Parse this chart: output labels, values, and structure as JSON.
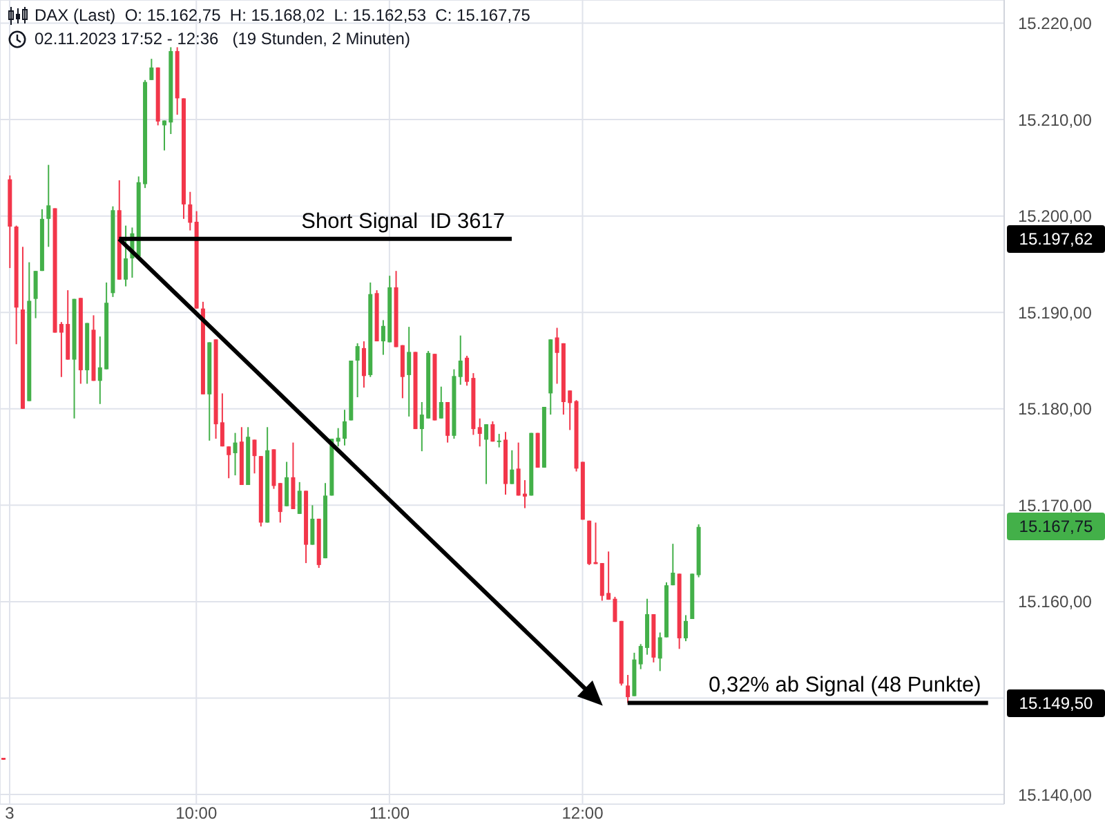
{
  "chart_data": {
    "type": "candlestick",
    "title": "DAX (Last)  O: 15.162,75  H: 15.168,02  L: 15.162,53  C: 15.167,75",
    "subtitle": "02.11.2023 17:52 - 12:36   (19 Stunden, 2 Minuten)",
    "categories": [
      null,
      "3",
      null,
      null,
      null,
      null,
      null,
      null,
      null,
      null,
      null,
      null,
      null,
      null,
      null,
      null,
      null,
      null,
      null,
      null,
      null,
      null,
      null,
      null,
      null,
      null,
      null,
      null,
      null,
      null,
      "10:00",
      null,
      null,
      null,
      null,
      null,
      null,
      null,
      null,
      null,
      null,
      null,
      null,
      null,
      null,
      null,
      null,
      null,
      null,
      null,
      null,
      null,
      null,
      null,
      null,
      null,
      null,
      null,
      null,
      null,
      "11:00",
      null,
      null,
      null,
      null,
      null,
      null,
      null,
      null,
      null,
      null,
      null,
      null,
      null,
      null,
      null,
      null,
      null,
      null,
      null,
      null,
      null,
      null,
      null,
      null,
      null,
      null,
      null,
      null,
      null,
      "12:00",
      null,
      null,
      null,
      null,
      null,
      null,
      null,
      null,
      null,
      null,
      null,
      null,
      null,
      null,
      null,
      null,
      null,
      null,
      null,
      null,
      null,
      null,
      null,
      null,
      null,
      null,
      null,
      null,
      null,
      null,
      null,
      null,
      null,
      null,
      null,
      null,
      null,
      null,
      null,
      null,
      null,
      null,
      null,
      null,
      null,
      null,
      null,
      null,
      null,
      null,
      null,
      null,
      null,
      null,
      null,
      null,
      null,
      null,
      null,
      null,
      null,
      null,
      null,
      null,
      null
    ],
    "ohlc": [
      [
        15143.8,
        15143.8,
        15143.6,
        15143.6
      ],
      [
        15203.8,
        15204.2,
        15194.6,
        15198.9
      ],
      [
        15198.9,
        15199.0,
        15186.7,
        15190.5
      ],
      [
        15190.3,
        15196.8,
        15180.0,
        15180.0
      ],
      [
        15180.8,
        15195.2,
        15180.8,
        15191.2
      ],
      [
        15191.4,
        15194.3,
        15189.4,
        15194.3
      ],
      [
        15194.3,
        15200.7,
        15194.3,
        15199.7
      ],
      [
        15199.7,
        15205.3,
        15196.8,
        15201.1
      ],
      [
        15200.8,
        15200.8,
        15187.9,
        15187.9
      ],
      [
        15188.8,
        15189.0,
        15183.3,
        15187.9
      ],
      [
        15188.8,
        15192.3,
        15185.1,
        15185.1
      ],
      [
        15185.1,
        15191.4,
        15179.0,
        15191.4
      ],
      [
        15191.5,
        15191.5,
        15182.6,
        15184.0
      ],
      [
        15184.0,
        15188.9,
        15182.6,
        15188.9
      ],
      [
        15188.2,
        15189.7,
        15182.9,
        15182.9
      ],
      [
        15182.9,
        15187.5,
        15180.5,
        15184.3
      ],
      [
        15184.1,
        15193.1,
        15184.1,
        15191.0
      ],
      [
        15192.0,
        15201.0,
        15191.6,
        15200.6
      ],
      [
        15200.6,
        15203.7,
        15193.4,
        15193.4
      ],
      [
        15193.4,
        15199.0,
        15192.7,
        15195.6
      ],
      [
        15195.6,
        15198.8,
        15193.6,
        15198.2
      ],
      [
        15195.8,
        15204.1,
        15195.8,
        15203.5
      ],
      [
        15203.3,
        15214.1,
        15202.9,
        15213.9
      ],
      [
        15214.1,
        15216.3,
        15214.1,
        15215.4
      ],
      [
        15215.4,
        15215.4,
        15209.4,
        15209.8
      ],
      [
        15209.4,
        15209.9,
        15206.8,
        15209.9
      ],
      [
        15209.7,
        15217.5,
        15208.5,
        15217.1
      ],
      [
        15217.1,
        15217.5,
        15210.5,
        15212.2
      ],
      [
        15212.2,
        15212.2,
        15199.7,
        15201.2
      ],
      [
        15201.2,
        15202.5,
        15198.5,
        15199.3
      ],
      [
        15199.4,
        15200.5,
        15190.4,
        15190.4
      ],
      [
        15190.4,
        15191.1,
        15181.5,
        15181.5
      ],
      [
        15181.5,
        15186.9,
        15176.7,
        15186.9
      ],
      [
        15187.2,
        15187.2,
        15176.9,
        15178.4
      ],
      [
        15178.6,
        15181.6,
        15176.1,
        15176.1
      ],
      [
        15176.1,
        15176.1,
        15172.8,
        15175.2
      ],
      [
        15175.4,
        15177.5,
        15173.1,
        15176.5
      ],
      [
        15176.6,
        15178.1,
        15172.1,
        15172.1
      ],
      [
        15172.1,
        15178.1,
        15172.1,
        15177.1
      ],
      [
        15176.8,
        15176.8,
        15173.3,
        15175.1
      ],
      [
        15175.1,
        15175.1,
        15167.8,
        15168.2
      ],
      [
        15168.2,
        15178.1,
        15168.2,
        15175.7
      ],
      [
        15175.8,
        15175.8,
        15171.7,
        15172.0
      ],
      [
        15172.3,
        15172.3,
        15168.2,
        15169.3
      ],
      [
        15169.9,
        15174.5,
        15169.9,
        15172.9
      ],
      [
        15172.9,
        15176.5,
        15169.6,
        15169.6
      ],
      [
        15169.1,
        15172.4,
        15169.1,
        15171.5
      ],
      [
        15171.5,
        15171.5,
        15164.0,
        15165.9
      ],
      [
        15165.9,
        15170.0,
        15165.9,
        15168.6
      ],
      [
        15168.6,
        15168.6,
        15163.5,
        15163.8
      ],
      [
        15164.5,
        15172.3,
        15164.5,
        15171.0
      ],
      [
        15171.0,
        15176.9,
        15171.0,
        15176.9
      ],
      [
        15176.6,
        15178.0,
        15176.1,
        15177.0
      ],
      [
        15176.9,
        15179.9,
        15176.2,
        15178.7
      ],
      [
        15178.8,
        15185.0,
        15178.8,
        15185.0
      ],
      [
        15185.0,
        15186.8,
        15181.2,
        15186.5
      ],
      [
        15186.3,
        15187.0,
        15182.2,
        15183.4
      ],
      [
        15183.5,
        15193.1,
        15183.3,
        15191.9
      ],
      [
        15192.0,
        15192.3,
        15187.0,
        15187.0
      ],
      [
        15187.0,
        15189.2,
        15185.6,
        15188.6
      ],
      [
        15186.9,
        15193.8,
        15186.9,
        15192.6
      ],
      [
        15192.6,
        15194.3,
        15186.4,
        15186.4
      ],
      [
        15186.6,
        15186.6,
        15181.1,
        15183.3
      ],
      [
        15183.5,
        15188.5,
        15179.2,
        15185.9
      ],
      [
        15185.9,
        15185.9,
        15177.9,
        15177.9
      ],
      [
        15177.9,
        15180.7,
        15175.6,
        15179.4
      ],
      [
        15179.0,
        15186.0,
        15179.0,
        15185.8
      ],
      [
        15185.7,
        15185.7,
        15178.8,
        15178.8
      ],
      [
        15179.0,
        15182.3,
        15179.0,
        15180.7
      ],
      [
        15180.7,
        15180.7,
        15176.5,
        15177.2
      ],
      [
        15177.2,
        15184.1,
        15176.9,
        15183.4
      ],
      [
        15183.3,
        15187.6,
        15182.5,
        15185.0
      ],
      [
        15185.3,
        15185.5,
        15182.4,
        15182.8
      ],
      [
        15183.2,
        15183.7,
        15177.3,
        15177.9
      ],
      [
        15178.1,
        15179.0,
        15176.1,
        15177.4
      ],
      [
        15176.8,
        15178.4,
        15172.2,
        15178.4
      ],
      [
        15178.4,
        15178.7,
        15176.6,
        15176.6
      ],
      [
        15176.6,
        15177.4,
        15176.0,
        15176.7
      ],
      [
        15176.8,
        15177.6,
        15171.1,
        15172.2
      ],
      [
        15172.2,
        15175.7,
        15172.2,
        15173.7
      ],
      [
        15173.8,
        15176.5,
        15171.0,
        15171.0
      ],
      [
        15171.2,
        15172.6,
        15169.7,
        15170.9
      ],
      [
        15171.0,
        15177.5,
        15171.0,
        15177.5
      ],
      [
        15177.5,
        15177.5,
        15173.9,
        15173.9
      ],
      [
        15173.9,
        15180.2,
        15173.9,
        15180.2
      ],
      [
        15181.6,
        15187.2,
        15179.4,
        15187.2
      ],
      [
        15187.4,
        15188.4,
        15182.6,
        15185.8
      ],
      [
        15186.8,
        15186.8,
        15179.4,
        15180.7
      ],
      [
        15181.9,
        15181.9,
        15177.8,
        15180.6
      ],
      [
        15180.8,
        15180.9,
        15173.5,
        15173.8
      ],
      [
        15174.5,
        15174.5,
        15168.5,
        15168.5
      ],
      [
        15168.4,
        15168.4,
        15163.8,
        15163.9
      ],
      [
        15164.1,
        15168.2,
        15163.9,
        15163.9
      ],
      [
        15164.0,
        15164.0,
        15160.1,
        15160.6
      ],
      [
        15160.9,
        15165.2,
        15160.2,
        15160.2
      ],
      [
        15160.3,
        15160.5,
        15157.9,
        15157.9
      ],
      [
        15158.0,
        15158.0,
        15151.3,
        15151.5
      ],
      [
        15151.3,
        15152.4,
        15149.5,
        15150.1
      ],
      [
        15150.2,
        15154.7,
        15150.2,
        15154.0
      ],
      [
        15153.5,
        15155.6,
        15153.0,
        15155.4
      ],
      [
        15155.2,
        15160.3,
        15154.5,
        15158.7
      ],
      [
        15158.7,
        15158.7,
        15153.7,
        15154.2
      ],
      [
        15154.1,
        15156.8,
        15152.8,
        15156.3
      ],
      [
        15156.3,
        15162.0,
        15156.3,
        15161.7
      ],
      [
        15161.7,
        15166.0,
        15161.7,
        15163.0
      ],
      [
        15162.9,
        15162.9,
        15155.1,
        15156.2
      ],
      [
        15156.2,
        15158.6,
        15155.9,
        15158.0
      ],
      [
        15158.2,
        15162.9,
        15158.2,
        15162.9
      ],
      [
        15162.75,
        15168.02,
        15162.53,
        15167.75
      ],
      null,
      null,
      null,
      null,
      null,
      null,
      null,
      null,
      null,
      null,
      null,
      null,
      null,
      null,
      null,
      null,
      null,
      null,
      null,
      null,
      null,
      null,
      null,
      null,
      null,
      null,
      null,
      null,
      null,
      null,
      null,
      null,
      null,
      null,
      null,
      null,
      null,
      null,
      null,
      null,
      null,
      null,
      null,
      null,
      null,
      null,
      null
    ],
    "colors": [
      "#f2364a",
      "#f2364a",
      "#f2364a",
      "#f2364a",
      "#43b049",
      "#43b049",
      "#43b049",
      "#43b049",
      "#f2364a",
      "#f2364a",
      "#f2364a",
      "#43b049",
      "#f2364a",
      "#43b049",
      "#f2364a",
      "#43b049",
      "#43b049",
      "#43b049",
      "#f2364a",
      "#43b049",
      "#43b049",
      "#43b049",
      "#43b049",
      "#43b049",
      "#f2364a",
      "#43b049",
      "#43b049",
      "#f2364a",
      "#f2364a",
      "#f2364a",
      "#f2364a",
      "#f2364a",
      "#43b049",
      "#f2364a",
      "#f2364a",
      "#f2364a",
      "#43b049",
      "#f2364a",
      "#43b049",
      "#f2364a",
      "#f2364a",
      "#43b049",
      "#f2364a",
      "#f2364a",
      "#43b049",
      "#f2364a",
      "#43b049",
      "#f2364a",
      "#43b049",
      "#f2364a",
      "#43b049",
      "#43b049",
      "#43b049",
      "#43b049",
      "#43b049",
      "#43b049",
      "#f2364a",
      "#43b049",
      "#f2364a",
      "#43b049",
      "#43b049",
      "#f2364a",
      "#f2364a",
      "#43b049",
      "#f2364a",
      "#43b049",
      "#43b049",
      "#f2364a",
      "#43b049",
      "#f2364a",
      "#43b049",
      "#43b049",
      "#f2364a",
      "#f2364a",
      "#f2364a",
      "#43b049",
      "#f2364a",
      "#43b049",
      "#f2364a",
      "#43b049",
      "#f2364a",
      "#f2364a",
      "#43b049",
      "#f2364a",
      "#43b049",
      "#43b049",
      "#f2364a",
      "#f2364a",
      "#f2364a",
      "#f2364a",
      "#f2364a",
      "#f2364a",
      "#f2364a",
      "#f2364a",
      "#f2364a",
      "#f2364a",
      "#f2364a",
      "#f2364a",
      "#43b049",
      "#43b049",
      "#43b049",
      "#f2364a",
      "#43b049",
      "#43b049",
      "#43b049",
      "#f2364a",
      "#43b049",
      "#43b049",
      "#43b049",
      null,
      null,
      null,
      null,
      null,
      null,
      null,
      null,
      null,
      null,
      null,
      null,
      null,
      null,
      null,
      null,
      null,
      null,
      null,
      null,
      null,
      null,
      null,
      null,
      null,
      null,
      null,
      null,
      null,
      null,
      null,
      null,
      null,
      null,
      null,
      null,
      null,
      null,
      null,
      null,
      null,
      null,
      null,
      null,
      null,
      null,
      null
    ],
    "series": [
      {
        "type": "line",
        "name": "Short Signal  ID 3617",
        "color": "#000000",
        "values": [
          null,
          null,
          null,
          null,
          null,
          null,
          null,
          null,
          null,
          null,
          null,
          null,
          null,
          null,
          null,
          null,
          null,
          null,
          15197.62,
          null,
          null,
          null,
          null,
          null,
          null,
          null,
          null,
          null,
          null,
          null,
          null,
          null,
          null,
          null,
          null,
          null,
          null,
          null,
          null,
          null,
          null,
          null,
          null,
          null,
          null,
          null,
          null,
          null,
          null,
          null,
          null,
          null,
          null,
          null,
          null,
          null,
          null,
          null,
          null,
          null,
          null,
          null,
          null,
          null,
          null,
          null,
          null,
          null,
          null,
          null,
          null,
          null,
          null,
          null,
          null,
          null,
          null,
          null,
          null,
          15197.62,
          null,
          null,
          null,
          null,
          null,
          null,
          null,
          null,
          null,
          null,
          null,
          null,
          null,
          null,
          null,
          null,
          null,
          null,
          null,
          null,
          null,
          null,
          null,
          null,
          null,
          null,
          null,
          null,
          null,
          null,
          null,
          null,
          null,
          null,
          null,
          null,
          null,
          null,
          null,
          null,
          null,
          null,
          null,
          null,
          null,
          null,
          null,
          null,
          null,
          null,
          null,
          null,
          null,
          null,
          null,
          null,
          null,
          null,
          null,
          null,
          null,
          null,
          null,
          null,
          null,
          null,
          null,
          null,
          null,
          null,
          null,
          null,
          null,
          null,
          null,
          null
        ]
      },
      {
        "type": "line",
        "name": "0,32% ab Signal (48 Punkte)",
        "color": "#000000",
        "values": [
          null,
          null,
          null,
          null,
          null,
          null,
          null,
          null,
          null,
          null,
          null,
          null,
          null,
          null,
          null,
          null,
          null,
          null,
          null,
          null,
          null,
          null,
          null,
          null,
          null,
          null,
          null,
          null,
          null,
          null,
          null,
          null,
          null,
          null,
          null,
          null,
          null,
          null,
          null,
          null,
          null,
          null,
          null,
          null,
          null,
          null,
          null,
          null,
          null,
          null,
          null,
          null,
          null,
          null,
          null,
          null,
          null,
          null,
          null,
          null,
          null,
          null,
          null,
          null,
          null,
          null,
          null,
          null,
          null,
          null,
          null,
          null,
          null,
          null,
          null,
          null,
          null,
          null,
          null,
          null,
          null,
          null,
          null,
          null,
          null,
          null,
          null,
          null,
          null,
          null,
          null,
          null,
          null,
          null,
          null,
          null,
          null,
          15149.5,
          null,
          null,
          null,
          null,
          null,
          null,
          null,
          null,
          null,
          null,
          null,
          null,
          null,
          null,
          null,
          null,
          null,
          null,
          null,
          null,
          null,
          null,
          null,
          null,
          null,
          null,
          null,
          null,
          null,
          null,
          null,
          null,
          null,
          null,
          null,
          null,
          null,
          null,
          null,
          null,
          null,
          null,
          null,
          null,
          null,
          null,
          null,
          null,
          null,
          null,
          null,
          null,
          null,
          null,
          null,
          15149.5,
          null,
          null
        ]
      }
    ],
    "annotations": [
      "15.197,62",
      "15.167,75",
      "15.149,50"
    ],
    "ylim": [
      15139,
      15222.4
    ],
    "yticks": [
      {
        "value": 15140,
        "label": "15.140,00"
      },
      {
        "value": 15150,
        "label": null
      },
      {
        "value": 15160,
        "label": "15.160,00"
      },
      {
        "value": 15170,
        "label": "15.170,00"
      },
      {
        "value": 15180,
        "label": "15.180,00"
      },
      {
        "value": 15190,
        "label": "15.190,00"
      },
      {
        "value": 15200,
        "label": "15.200,00"
      },
      {
        "value": 15210,
        "label": "15.210,00"
      },
      {
        "value": 15220,
        "label": "15.220,00"
      }
    ],
    "grid": true
  }
}
